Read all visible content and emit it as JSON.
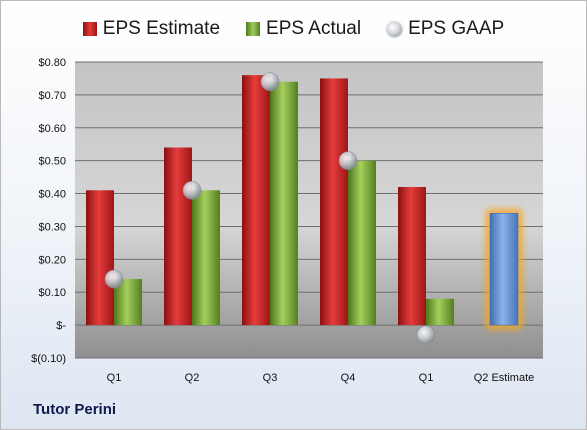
{
  "company": "Tutor Perini",
  "chart_data": {
    "type": "bar",
    "categories": [
      "Q1",
      "Q2",
      "Q3",
      "Q4",
      "Q1",
      "Q2 Estimate"
    ],
    "series": [
      {
        "name": "EPS Estimate",
        "values": [
          0.41,
          0.54,
          0.76,
          0.75,
          0.42,
          null
        ],
        "color": "#d42a2a"
      },
      {
        "name": "EPS Actual",
        "values": [
          0.14,
          0.41,
          0.74,
          0.5,
          0.08,
          null
        ],
        "color": "#8cbf4a"
      },
      {
        "name": "EPS GAAP",
        "type": "scatter",
        "values": [
          0.14,
          0.41,
          0.74,
          0.5,
          -0.03,
          null
        ],
        "color": "#c9ccd2"
      }
    ],
    "projection": {
      "category": "Q2 Estimate",
      "value": 0.34,
      "color": "#6a98d8",
      "glow": "#f5a623"
    },
    "yticks": [
      "$(0.10)",
      "$-",
      "$0.10",
      "$0.20",
      "$0.30",
      "$0.40",
      "$0.50",
      "$0.60",
      "$0.70",
      "$0.80"
    ],
    "ylim": [
      -0.1,
      0.8
    ],
    "grid": true,
    "legend_position": "top"
  }
}
